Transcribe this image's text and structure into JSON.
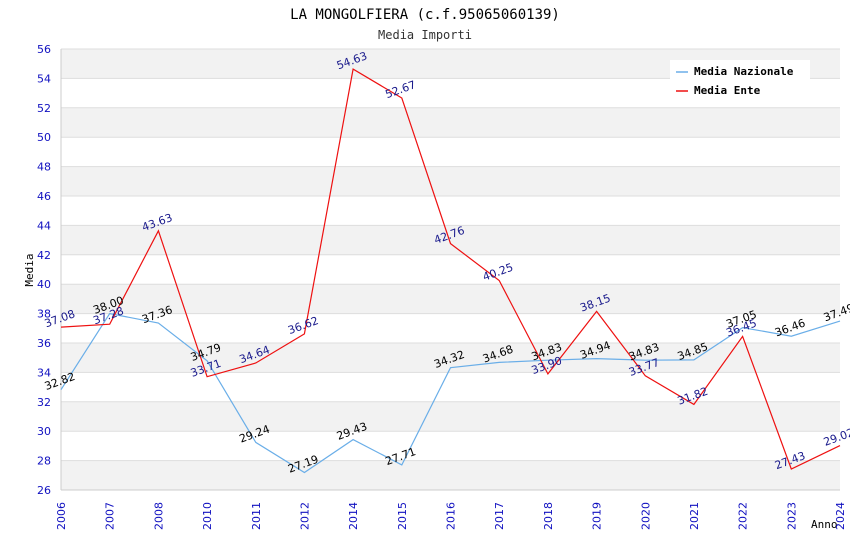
{
  "chart_data": {
    "type": "line",
    "title": "LA MONGOLFIERA (c.f.95065060139)",
    "subtitle": "Media Importi",
    "xlabel": "Anno",
    "ylabel": "Media",
    "categories": [
      "2006",
      "2007",
      "2008",
      "2010",
      "2011",
      "2012",
      "2014",
      "2015",
      "2016",
      "2017",
      "2018",
      "2019",
      "2020",
      "2021",
      "2022",
      "2023",
      "2024"
    ],
    "ylim": [
      26,
      56
    ],
    "yticks": [
      26,
      28,
      30,
      32,
      34,
      36,
      38,
      40,
      42,
      44,
      46,
      48,
      50,
      52,
      54,
      56
    ],
    "legend_position": "top-right",
    "series": [
      {
        "name": "Media Nazionale",
        "color": "#6aaee8",
        "label_color": "#000000",
        "values": [
          32.82,
          38.0,
          37.36,
          34.79,
          29.24,
          27.19,
          29.43,
          27.71,
          34.32,
          34.68,
          34.83,
          34.94,
          34.83,
          34.85,
          37.05,
          36.46,
          37.49
        ],
        "labels": [
          "32.82",
          "38.00",
          "37.36",
          "34.79",
          "29.24",
          "27.19",
          "29.43",
          "27.71",
          "34.32",
          "34.68",
          "34.83",
          "34.94",
          "34.83",
          "34.85",
          "37.05",
          "36.46",
          "37.49"
        ]
      },
      {
        "name": "Media Ente",
        "color": "#ee1111",
        "label_color": "#1a1a8c",
        "values": [
          37.08,
          37.28,
          43.63,
          33.71,
          34.64,
          36.62,
          54.63,
          52.67,
          42.76,
          40.25,
          33.9,
          38.15,
          33.77,
          31.82,
          36.45,
          27.43,
          29.02
        ],
        "labels": [
          "37.08",
          "37.28",
          "43.63",
          "33.71",
          "34.64",
          "36.62",
          "54.63",
          "52.67",
          "42.76",
          "40.25",
          "33.90",
          "38.15",
          "33.77",
          "31.82",
          "36.45",
          "27.43",
          "29.02"
        ]
      }
    ]
  }
}
